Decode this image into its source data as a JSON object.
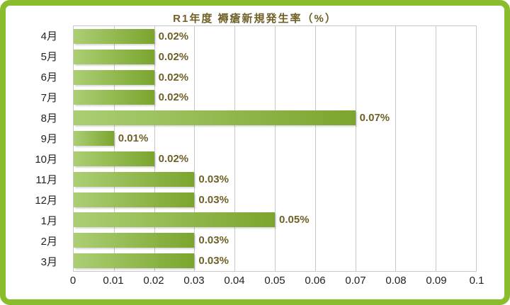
{
  "chart_data": {
    "type": "bar",
    "orientation": "horizontal",
    "title": "R1年度 褥瘡新規発生率（%）",
    "categories": [
      "4月",
      "5月",
      "6月",
      "7月",
      "8月",
      "9月",
      "10月",
      "11月",
      "12月",
      "1月",
      "2月",
      "3月"
    ],
    "values": [
      0.02,
      0.02,
      0.02,
      0.02,
      0.07,
      0.01,
      0.02,
      0.03,
      0.03,
      0.05,
      0.03,
      0.03
    ],
    "value_labels": [
      "0.02%",
      "0.02%",
      "0.02%",
      "0.02%",
      "0.07%",
      "0.01%",
      "0.02%",
      "0.03%",
      "0.03%",
      "0.05%",
      "0.03%",
      "0.03%"
    ],
    "xlabel": "",
    "ylabel": "",
    "xlim": [
      0,
      0.1
    ],
    "x_tick_values": [
      0,
      0.01,
      0.02,
      0.03,
      0.04,
      0.05,
      0.06,
      0.07,
      0.08,
      0.09,
      0.1
    ],
    "x_tick_labels": [
      "0",
      "0.01",
      "0.02",
      "0.03",
      "0.04",
      "0.05",
      "0.06",
      "0.07",
      "0.08",
      "0.09",
      "0.1"
    ],
    "grid": "vertical-only",
    "legend": "none",
    "colors": {
      "frame_border": "#89bd2e",
      "bar_gradient_start": "#abce74",
      "bar_gradient_end": "#7ba52d",
      "value_label": "#6f6026",
      "title": "#6f6026",
      "axis_text": "#1f1f1f",
      "gridline": "#c8c8c8"
    }
  }
}
